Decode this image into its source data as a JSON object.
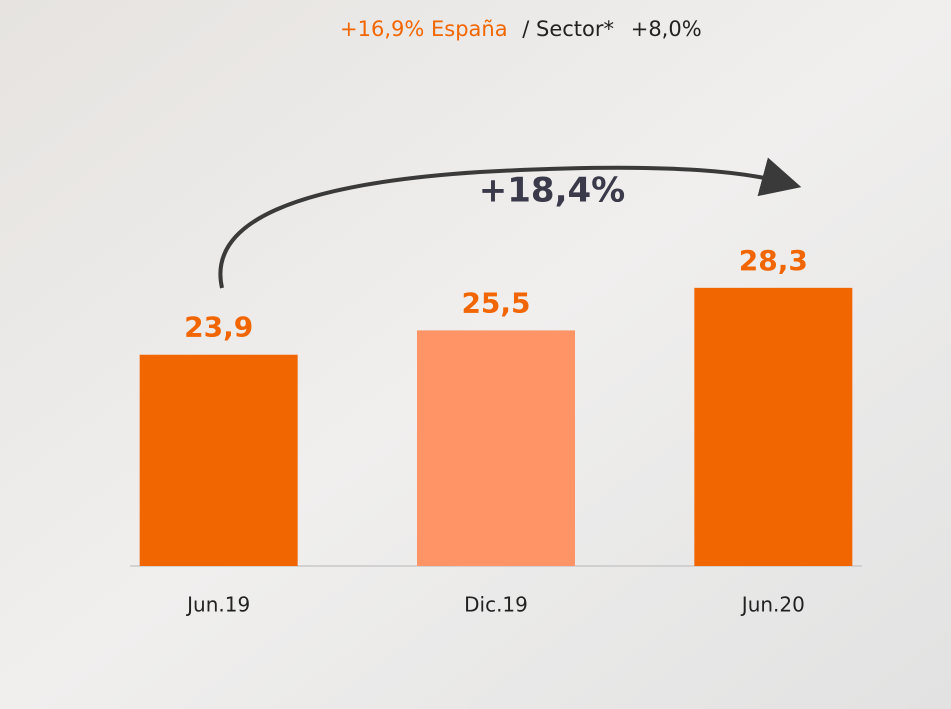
{
  "chart_data": {
    "type": "bar",
    "header": {
      "country": "+16,9% España",
      "sector": "/ Sector*",
      "sector_value": "+8,0%"
    },
    "annotation": "+18,4%",
    "categories": [
      "Jun.19",
      "Dic.19",
      "Jun.20"
    ],
    "values": [
      23.9,
      25.5,
      28.3
    ],
    "value_labels": [
      "23,9",
      "25,5",
      "28,3"
    ],
    "colors": [
      "#f26600",
      "#ff9466",
      "#f26600"
    ],
    "ylim": [
      10,
      30
    ]
  }
}
